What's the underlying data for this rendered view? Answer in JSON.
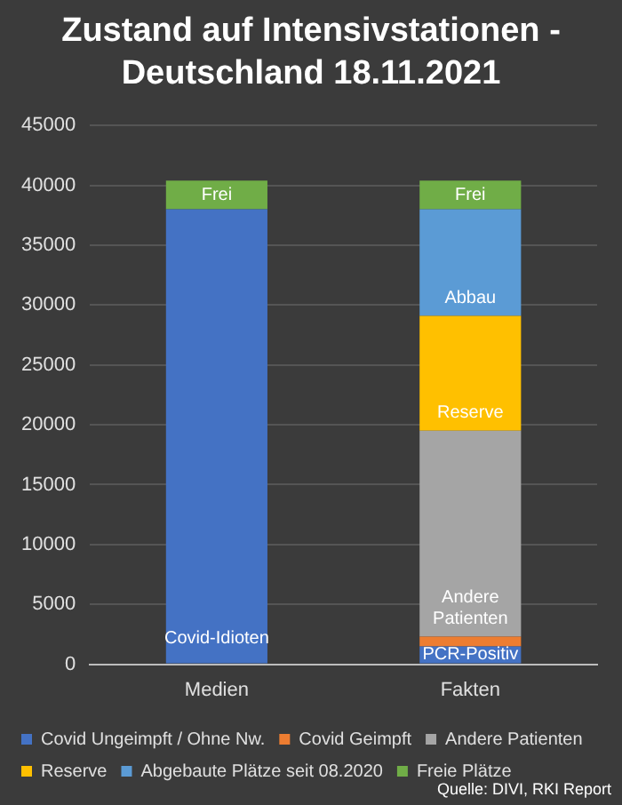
{
  "chart_data": {
    "type": "bar",
    "title": "Zustand auf Intensivstationen - Deutschland 18.11.2021",
    "categories": [
      "Medien",
      "Fakten"
    ],
    "stacked": true,
    "series": [
      {
        "name": "Covid Ungeimpft / Ohne Nw.",
        "color": "#4472c4",
        "values": [
          38000,
          1500
        ],
        "value_labels": [
          "Covid-Idioten",
          "PCR-Positiv"
        ]
      },
      {
        "name": "Covid Geimpft",
        "color": "#ed7d31",
        "values": [
          null,
          800
        ]
      },
      {
        "name": "Andere Patienten",
        "color": "#a5a5a5",
        "values": [
          null,
          17200
        ],
        "value_labels": [
          null,
          "Andere Patienten"
        ]
      },
      {
        "name": "Reserve",
        "color": "#ffc000",
        "values": [
          null,
          9600
        ],
        "value_labels": [
          null,
          "Reserve"
        ]
      },
      {
        "name": "Abgebaute Plätze seit 08.2020",
        "color": "#5b9bd5",
        "values": [
          null,
          8900
        ],
        "value_labels": [
          null,
          "Abbau"
        ]
      },
      {
        "name": "Freie Plätze",
        "color": "#70ad47",
        "values": [
          2400,
          2400
        ],
        "value_labels": [
          "Frei",
          "Frei"
        ]
      }
    ],
    "ylim": [
      0,
      45000
    ],
    "yticks": [
      0,
      5000,
      10000,
      15000,
      20000,
      25000,
      30000,
      35000,
      40000,
      45000
    ],
    "grid": "y",
    "legend": "bottom",
    "annotations": [
      "Quelle: DIVI, RKI Report"
    ]
  }
}
